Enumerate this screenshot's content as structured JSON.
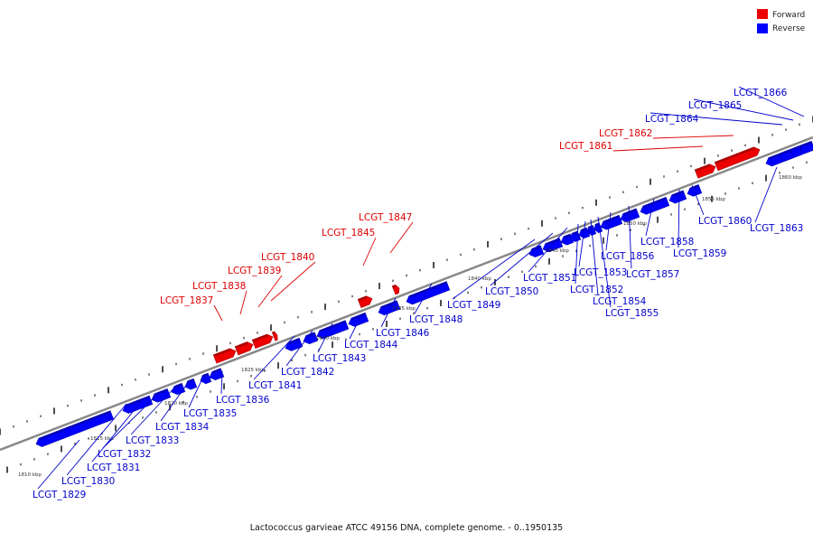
{
  "caption": "Lactococcus garvieae ATCC 49156 DNA, complete genome. - 0..1950135",
  "legend": [
    {
      "label": "Forward",
      "color": "#ee0000"
    },
    {
      "label": "Reverse",
      "color": "#0000ff"
    }
  ],
  "colors": {
    "forward": "#ee0000",
    "reverse": "#0000ff",
    "backbone": "#888888"
  },
  "kbp_labels": [
    "1810 kbp",
    "1815 kbp",
    "1820 kbp",
    "1825 kbp",
    "1830 kbp",
    "1835 kbp",
    "1840 kbp",
    "1845 kbp",
    "1850 kbp",
    "1855 kbp",
    "1860 kbp"
  ],
  "genes": [
    {
      "id": "LCGT_1829",
      "strand": "reverse"
    },
    {
      "id": "LCGT_1830",
      "strand": "reverse"
    },
    {
      "id": "LCGT_1831",
      "strand": "reverse"
    },
    {
      "id": "LCGT_1832",
      "strand": "reverse"
    },
    {
      "id": "LCGT_1833",
      "strand": "reverse"
    },
    {
      "id": "LCGT_1834",
      "strand": "reverse"
    },
    {
      "id": "LCGT_1835",
      "strand": "reverse"
    },
    {
      "id": "LCGT_1836",
      "strand": "reverse"
    },
    {
      "id": "LCGT_1837",
      "strand": "forward"
    },
    {
      "id": "LCGT_1838",
      "strand": "forward"
    },
    {
      "id": "LCGT_1839",
      "strand": "forward"
    },
    {
      "id": "LCGT_1840",
      "strand": "forward"
    },
    {
      "id": "LCGT_1841",
      "strand": "reverse"
    },
    {
      "id": "LCGT_1842",
      "strand": "reverse"
    },
    {
      "id": "LCGT_1843",
      "strand": "reverse"
    },
    {
      "id": "LCGT_1844",
      "strand": "reverse"
    },
    {
      "id": "LCGT_1845",
      "strand": "forward"
    },
    {
      "id": "LCGT_1846",
      "strand": "reverse"
    },
    {
      "id": "LCGT_1847",
      "strand": "forward"
    },
    {
      "id": "LCGT_1848",
      "strand": "reverse"
    },
    {
      "id": "LCGT_1849",
      "strand": "reverse"
    },
    {
      "id": "LCGT_1850",
      "strand": "reverse"
    },
    {
      "id": "LCGT_1851",
      "strand": "reverse"
    },
    {
      "id": "LCGT_1852",
      "strand": "reverse"
    },
    {
      "id": "LCGT_1853",
      "strand": "reverse"
    },
    {
      "id": "LCGT_1854",
      "strand": "reverse"
    },
    {
      "id": "LCGT_1855",
      "strand": "reverse"
    },
    {
      "id": "LCGT_1856",
      "strand": "reverse"
    },
    {
      "id": "LCGT_1857",
      "strand": "reverse"
    },
    {
      "id": "LCGT_1858",
      "strand": "reverse"
    },
    {
      "id": "LCGT_1859",
      "strand": "reverse"
    },
    {
      "id": "LCGT_1860",
      "strand": "reverse"
    },
    {
      "id": "LCGT_1861",
      "strand": "forward"
    },
    {
      "id": "LCGT_1862",
      "strand": "forward"
    },
    {
      "id": "LCGT_1863",
      "strand": "reverse"
    },
    {
      "id": "LCGT_1864",
      "strand": "reverse"
    },
    {
      "id": "LCGT_1865",
      "strand": "reverse"
    },
    {
      "id": "LCGT_1866",
      "strand": "reverse"
    }
  ]
}
